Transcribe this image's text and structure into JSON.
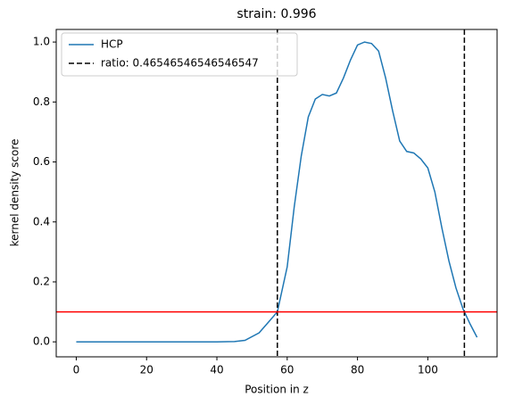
{
  "chart_data": {
    "type": "line",
    "title": "strain: 0.996",
    "xlabel": "Position in z",
    "ylabel": "kernel density score",
    "x": [
      0,
      10,
      20,
      30,
      40,
      45,
      48,
      52,
      55,
      57.2,
      60,
      62,
      64,
      66,
      68,
      70,
      72,
      74,
      76,
      78,
      80,
      82,
      84,
      86,
      88,
      90,
      92,
      94,
      96,
      98,
      100,
      102,
      104,
      106,
      108,
      110,
      110.4,
      112,
      114
    ],
    "series": [
      {
        "name": "HCP",
        "color": "#1f77b4",
        "values": [
          0,
          0,
          0,
          0,
          0,
          0.001,
          0.005,
          0.03,
          0.07,
          0.1,
          0.25,
          0.45,
          0.62,
          0.75,
          0.81,
          0.825,
          0.82,
          0.83,
          0.88,
          0.94,
          0.99,
          1.0,
          0.995,
          0.97,
          0.88,
          0.77,
          0.67,
          0.635,
          0.63,
          0.61,
          0.58,
          0.5,
          0.38,
          0.27,
          0.18,
          0.11,
          0.1,
          0.06,
          0.015
        ]
      }
    ],
    "vlines": {
      "name": "ratio: 0.46546546546546547",
      "color": "#000000",
      "x": [
        57.2,
        110.4
      ]
    },
    "hline": {
      "value": 0.1,
      "color": "#ff0000"
    },
    "xlim": [
      -5.7,
      119.7
    ],
    "ylim": [
      -0.05,
      1.042
    ],
    "xticks": [
      0,
      20,
      40,
      60,
      80,
      100
    ],
    "yticks": [
      {
        "value": 0,
        "label": "0.0"
      },
      {
        "value": 0.2,
        "label": "0.2"
      },
      {
        "value": 0.4,
        "label": "0.4"
      },
      {
        "value": 0.6,
        "label": "0.6"
      },
      {
        "value": 0.8,
        "label": "0.8"
      },
      {
        "value": 1,
        "label": "1.0"
      }
    ],
    "legend": "upper left"
  }
}
